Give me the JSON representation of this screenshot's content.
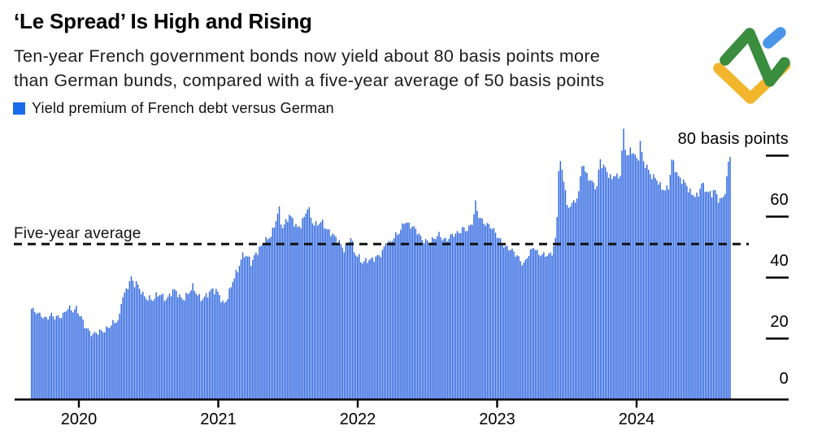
{
  "header": {
    "title": "‘Le Spread’ Is High and Rising",
    "subtitle_lines": [
      "Ten-year French government bonds now yield about 80 basis points more",
      "than German bunds, compared with a five-year average of 50 basis points"
    ]
  },
  "legend": {
    "label": "Yield premium of French debt versus German",
    "swatch_color": "#1a6beb"
  },
  "annotations": {
    "average_label": "Five-year average",
    "unit_top_label": "80 basis points"
  },
  "logo": {
    "name": "litefinance-logo",
    "colors": {
      "green": "#3a8c3f",
      "blue": "#4a95e8",
      "yellow": "#f2b62c"
    }
  },
  "chart_data": {
    "type": "bar",
    "title": "‘Le Spread’ Is High and Rising",
    "xlabel": "",
    "ylabel": "basis points",
    "x_ticks": [
      2020,
      2021,
      2022,
      2023,
      2024
    ],
    "y_ticks": [
      0,
      20,
      40,
      60,
      80
    ],
    "y_top_label": "80 basis points",
    "x_range": [
      2019.65,
      2024.67
    ],
    "ylim": [
      0,
      92
    ],
    "grid": "right-ticks-only",
    "legend_position": "top-left",
    "average_line": {
      "label": "Five-year average",
      "value": 51,
      "style": "dashed-black"
    },
    "series": [
      {
        "name": "Yield premium of French debt versus German",
        "color": "#2e66e0",
        "points": [
          [
            2019.656,
            29.8
          ],
          [
            2019.673,
            28.6
          ],
          [
            2019.691,
            28.2
          ],
          [
            2019.708,
            27.4
          ],
          [
            2019.726,
            27.8
          ],
          [
            2019.749,
            27.0
          ],
          [
            2019.773,
            27.4
          ],
          [
            2019.796,
            27.8
          ],
          [
            2019.819,
            26.6
          ],
          [
            2019.843,
            26.4
          ],
          [
            2019.866,
            27.2
          ],
          [
            2019.889,
            28.4
          ],
          [
            2019.907,
            30.2
          ],
          [
            2019.924,
            30.6
          ],
          [
            2019.942,
            29.2
          ],
          [
            2019.959,
            28.8
          ],
          [
            2019.977,
            29.4
          ],
          [
            2019.994,
            28.0
          ],
          [
            2020.012,
            27.2
          ],
          [
            2020.035,
            25.0
          ],
          [
            2020.058,
            23.4
          ],
          [
            2020.076,
            22.2
          ],
          [
            2020.099,
            20.8
          ],
          [
            2020.122,
            21.4
          ],
          [
            2020.146,
            22.2
          ],
          [
            2020.169,
            22.8
          ],
          [
            2020.192,
            23.6
          ],
          [
            2020.216,
            24.2
          ],
          [
            2020.239,
            24.6
          ],
          [
            2020.262,
            25.2
          ],
          [
            2020.28,
            25.6
          ],
          [
            2020.286,
            26.2
          ],
          [
            2020.303,
            33.5
          ],
          [
            2020.321,
            35.0
          ],
          [
            2020.338,
            36.5
          ],
          [
            2020.356,
            38.5
          ],
          [
            2020.373,
            39.8
          ],
          [
            2020.391,
            37.2
          ],
          [
            2020.408,
            37.8
          ],
          [
            2020.426,
            36.5
          ],
          [
            2020.437,
            36.2
          ],
          [
            2020.461,
            34.5
          ],
          [
            2020.484,
            33.6
          ],
          [
            2020.507,
            33.0
          ],
          [
            2020.531,
            32.2
          ],
          [
            2020.554,
            33.8
          ],
          [
            2020.577,
            34.6
          ],
          [
            2020.601,
            34.2
          ],
          [
            2020.624,
            33.2
          ],
          [
            2020.647,
            34.2
          ],
          [
            2020.671,
            35.4
          ],
          [
            2020.694,
            35.0
          ],
          [
            2020.717,
            33.8
          ],
          [
            2020.741,
            33.4
          ],
          [
            2020.764,
            34.4
          ],
          [
            2020.787,
            35.2
          ],
          [
            2020.811,
            36.6
          ],
          [
            2020.834,
            34.8
          ],
          [
            2020.857,
            33.6
          ],
          [
            2020.88,
            33.4
          ],
          [
            2020.904,
            34.4
          ],
          [
            2020.927,
            35.0
          ],
          [
            2020.95,
            35.6
          ],
          [
            2020.968,
            35.2
          ],
          [
            2020.985,
            35.3
          ],
          [
            2021.009,
            34.0
          ],
          [
            2021.032,
            31.6
          ],
          [
            2021.055,
            33.0
          ],
          [
            2021.079,
            35.5
          ],
          [
            2021.096,
            38.0
          ],
          [
            2021.12,
            40.5
          ],
          [
            2021.137,
            42.5
          ],
          [
            2021.16,
            46.5
          ],
          [
            2021.178,
            48.5
          ],
          [
            2021.195,
            47.5
          ],
          [
            2021.219,
            46.0
          ],
          [
            2021.236,
            44.0
          ],
          [
            2021.254,
            46.5
          ],
          [
            2021.277,
            48.5
          ],
          [
            2021.294,
            49.8
          ],
          [
            2021.312,
            51.5
          ],
          [
            2021.335,
            52.5
          ],
          [
            2021.359,
            52.8
          ],
          [
            2021.382,
            54.0
          ],
          [
            2021.405,
            57.5
          ],
          [
            2021.423,
            61.5
          ],
          [
            2021.434,
            62.5
          ],
          [
            2021.452,
            56.5
          ],
          [
            2021.469,
            57.8
          ],
          [
            2021.487,
            59.0
          ],
          [
            2021.504,
            60.3
          ],
          [
            2021.522,
            59.0
          ],
          [
            2021.545,
            57.2
          ],
          [
            2021.563,
            56.2
          ],
          [
            2021.586,
            57.5
          ],
          [
            2021.604,
            59.5
          ],
          [
            2021.621,
            61.0
          ],
          [
            2021.639,
            63.6
          ],
          [
            2021.656,
            60.0
          ],
          [
            2021.673,
            57.5
          ],
          [
            2021.691,
            56.8
          ],
          [
            2021.714,
            58.0
          ],
          [
            2021.738,
            59.0
          ],
          [
            2021.755,
            57.5
          ],
          [
            2021.778,
            55.5
          ],
          [
            2021.802,
            54.3
          ],
          [
            2021.825,
            53.2
          ],
          [
            2021.854,
            52.5
          ],
          [
            2021.878,
            51.0
          ],
          [
            2021.901,
            49.5
          ],
          [
            2021.924,
            50.5
          ],
          [
            2021.948,
            53.2
          ],
          [
            2021.965,
            48.5
          ],
          [
            2021.988,
            47.2
          ],
          [
            2022.006,
            47.0
          ],
          [
            2022.029,
            45.5
          ],
          [
            2022.058,
            45.8
          ],
          [
            2022.087,
            45.2
          ],
          [
            2022.117,
            46.0
          ],
          [
            2022.146,
            47.5
          ],
          [
            2022.175,
            49.0
          ],
          [
            2022.204,
            52.5
          ],
          [
            2022.222,
            50.5
          ],
          [
            2022.251,
            52.5
          ],
          [
            2022.28,
            54.5
          ],
          [
            2022.303,
            56.0
          ],
          [
            2022.332,
            59.0
          ],
          [
            2022.35,
            57.5
          ],
          [
            2022.373,
            56.6
          ],
          [
            2022.397,
            56.0
          ],
          [
            2022.42,
            55.6
          ],
          [
            2022.443,
            54.0
          ],
          [
            2022.466,
            52.6
          ],
          [
            2022.49,
            51.7
          ],
          [
            2022.513,
            51.2
          ],
          [
            2022.536,
            52.0
          ],
          [
            2022.56,
            53.6
          ],
          [
            2022.583,
            54.8
          ],
          [
            2022.606,
            53.0
          ],
          [
            2022.63,
            52.2
          ],
          [
            2022.653,
            52.6
          ],
          [
            2022.676,
            53.6
          ],
          [
            2022.7,
            54.5
          ],
          [
            2022.723,
            55.3
          ],
          [
            2022.746,
            56.6
          ],
          [
            2022.77,
            55.6
          ],
          [
            2022.787,
            55.5
          ],
          [
            2022.805,
            56.5
          ],
          [
            2022.822,
            58.0
          ],
          [
            2022.84,
            64.8
          ],
          [
            2022.857,
            61.5
          ],
          [
            2022.875,
            60.0
          ],
          [
            2022.898,
            58.5
          ],
          [
            2022.921,
            57.0
          ],
          [
            2022.945,
            56.5
          ],
          [
            2022.968,
            55.5
          ],
          [
            2022.991,
            54.5
          ],
          [
            2023.015,
            53.0
          ],
          [
            2023.038,
            51.0
          ],
          [
            2023.061,
            49.5
          ],
          [
            2023.085,
            49.0
          ],
          [
            2023.114,
            48.2
          ],
          [
            2023.143,
            47.5
          ],
          [
            2023.166,
            45.8
          ],
          [
            2023.19,
            44.3
          ],
          [
            2023.213,
            46.5
          ],
          [
            2023.236,
            48.0
          ],
          [
            2023.26,
            50.3
          ],
          [
            2023.283,
            48.5
          ],
          [
            2023.312,
            48.0
          ],
          [
            2023.341,
            47.3
          ],
          [
            2023.365,
            46.8
          ],
          [
            2023.388,
            47.5
          ],
          [
            2023.411,
            52.0
          ],
          [
            2023.423,
            55.0
          ],
          [
            2023.434,
            75.5
          ],
          [
            2023.446,
            79.0
          ],
          [
            2023.458,
            76.5
          ],
          [
            2023.469,
            72.5
          ],
          [
            2023.487,
            69.0
          ],
          [
            2023.499,
            61.5
          ],
          [
            2023.516,
            62.5
          ],
          [
            2023.534,
            65.0
          ],
          [
            2023.551,
            64.0
          ],
          [
            2023.569,
            67.0
          ],
          [
            2023.586,
            70.0
          ],
          [
            2023.609,
            79.0
          ],
          [
            2023.627,
            74.5
          ],
          [
            2023.644,
            72.5
          ],
          [
            2023.668,
            71.5
          ],
          [
            2023.691,
            70.5
          ],
          [
            2023.714,
            70.2
          ],
          [
            2023.732,
            79.8
          ],
          [
            2023.749,
            77.0
          ],
          [
            2023.773,
            75.5
          ],
          [
            2023.796,
            73.0
          ],
          [
            2023.819,
            72.0
          ],
          [
            2023.837,
            74.5
          ],
          [
            2023.854,
            73.5
          ],
          [
            2023.878,
            73.5
          ],
          [
            2023.901,
            88.5
          ],
          [
            2023.919,
            80.5
          ],
          [
            2023.936,
            79.0
          ],
          [
            2023.954,
            82.0
          ],
          [
            2023.971,
            81.0
          ],
          [
            2023.988,
            80.2
          ],
          [
            2024.006,
            78.5
          ],
          [
            2024.023,
            85.0
          ],
          [
            2024.041,
            78.5
          ],
          [
            2024.064,
            76.0
          ],
          [
            2024.088,
            74.2
          ],
          [
            2024.111,
            72.6
          ],
          [
            2024.134,
            73.5
          ],
          [
            2024.158,
            71.0
          ],
          [
            2024.181,
            69.3
          ],
          [
            2024.204,
            68.0
          ],
          [
            2024.228,
            69.6
          ],
          [
            2024.251,
            79.3
          ],
          [
            2024.274,
            76.0
          ],
          [
            2024.297,
            73.5
          ],
          [
            2024.321,
            72.0
          ],
          [
            2024.344,
            70.5
          ],
          [
            2024.367,
            68.6
          ],
          [
            2024.391,
            67.2
          ],
          [
            2024.414,
            67.6
          ],
          [
            2024.437,
            67.0
          ],
          [
            2024.461,
            71.5
          ],
          [
            2024.484,
            68.6
          ],
          [
            2024.507,
            67.6
          ],
          [
            2024.531,
            67.0
          ],
          [
            2024.554,
            69.6
          ],
          [
            2024.577,
            66.5
          ],
          [
            2024.601,
            65.6
          ],
          [
            2024.624,
            66.2
          ],
          [
            2024.641,
            71.0
          ],
          [
            2024.659,
            79.5
          ]
        ]
      }
    ]
  }
}
